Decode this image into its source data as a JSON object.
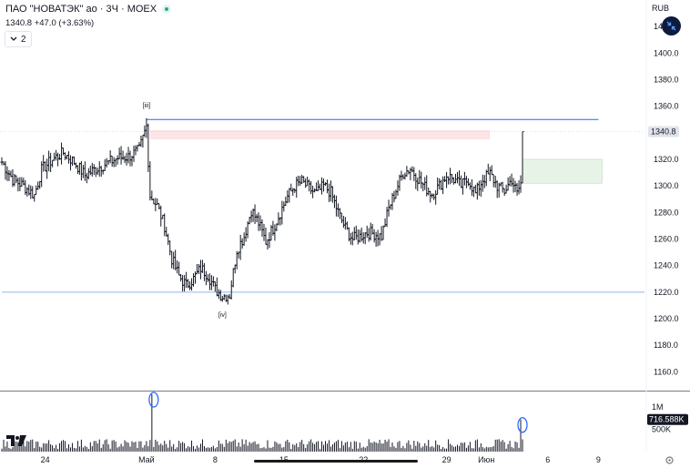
{
  "header": {
    "title": "ПАО \"НОВАТЭК\" ао · 3Ч · MOEX",
    "price": "1340.8",
    "change": "+47.0 (+3.63%)",
    "indicator_count": "2",
    "currency": "RUB"
  },
  "icons": {
    "status": "status-dot-icon",
    "collapse": "chevron-down-icon",
    "fab": "arrows-collapse-icon",
    "logo": "tradingview-logo-icon",
    "settings": "gear-icon"
  },
  "colors": {
    "up": "#131722",
    "resistance_line": "#2962ff",
    "support_line": "#90b4f5",
    "pink_zone": "#fce4e7",
    "green_zone": "#e8f3e8",
    "price_badge_bg": "#e0e3eb",
    "volume_badge_bg": "#131722"
  },
  "chart_data": {
    "type": "ohlc",
    "y_ticks": [
      "1420.0",
      "1400.0",
      "1380.0",
      "1360.0",
      "1340.0",
      "1320.0",
      "1300.0",
      "1280.0",
      "1260.0",
      "1240.0",
      "1220.0",
      "1200.0",
      "1180.0",
      "1160.0"
    ],
    "x_ticks": [
      "24",
      "Май",
      "8",
      "15",
      "22",
      "29",
      "Июн",
      "6",
      "9"
    ],
    "ylim": [
      1152,
      1440
    ],
    "x_bar_range": [
      0,
      290
    ],
    "annotations": [
      {
        "text": "[iii]",
        "bar": 80,
        "price": 1362
      },
      {
        "text": "[iv]",
        "bar": 122,
        "price": 1204
      }
    ],
    "horizontal_lines": [
      {
        "price": 1350,
        "from_bar": 80,
        "to_bar": 330,
        "style": "resistance"
      },
      {
        "price": 1220,
        "from_bar": 0,
        "to_bar": 356,
        "style": "support"
      }
    ],
    "zones": [
      {
        "from_bar": 82,
        "to_bar": 270,
        "low": 1335,
        "high": 1342,
        "style": "pink"
      },
      {
        "from_bar": 288,
        "to_bar": 332,
        "low": 1302,
        "high": 1320,
        "style": "green"
      }
    ],
    "last_price_label": "1340.8",
    "volume": {
      "ticks": [
        "1M",
        "500K"
      ],
      "last_label": "716.588K",
      "max": 1300000,
      "spikes": [
        {
          "bar": 83,
          "value": 1280000
        },
        {
          "bar": 287,
          "value": 716588
        }
      ]
    },
    "price_anchors": [
      [
        0,
        1318
      ],
      [
        6,
        1305
      ],
      [
        12,
        1300
      ],
      [
        18,
        1293
      ],
      [
        22,
        1312
      ],
      [
        28,
        1320
      ],
      [
        34,
        1325
      ],
      [
        40,
        1318
      ],
      [
        46,
        1308
      ],
      [
        52,
        1313
      ],
      [
        58,
        1317
      ],
      [
        64,
        1321
      ],
      [
        70,
        1322
      ],
      [
        76,
        1327
      ],
      [
        80,
        1345
      ],
      [
        82,
        1293
      ],
      [
        86,
        1285
      ],
      [
        90,
        1270
      ],
      [
        94,
        1245
      ],
      [
        98,
        1232
      ],
      [
        102,
        1225
      ],
      [
        106,
        1230
      ],
      [
        110,
        1238
      ],
      [
        114,
        1233
      ],
      [
        118,
        1222
      ],
      [
        122,
        1217
      ],
      [
        126,
        1218
      ],
      [
        130,
        1252
      ],
      [
        134,
        1262
      ],
      [
        138,
        1282
      ],
      [
        142,
        1272
      ],
      [
        146,
        1258
      ],
      [
        150,
        1268
      ],
      [
        154,
        1280
      ],
      [
        158,
        1292
      ],
      [
        162,
        1300
      ],
      [
        166,
        1303
      ],
      [
        170,
        1298
      ],
      [
        174,
        1294
      ],
      [
        178,
        1300
      ],
      [
        182,
        1295
      ],
      [
        186,
        1280
      ],
      [
        190,
        1268
      ],
      [
        194,
        1260
      ],
      [
        198,
        1262
      ],
      [
        202,
        1265
      ],
      [
        206,
        1264
      ],
      [
        210,
        1262
      ],
      [
        214,
        1283
      ],
      [
        218,
        1297
      ],
      [
        222,
        1310
      ],
      [
        226,
        1313
      ],
      [
        230,
        1306
      ],
      [
        234,
        1299
      ],
      [
        238,
        1294
      ],
      [
        242,
        1300
      ],
      [
        246,
        1308
      ],
      [
        250,
        1305
      ],
      [
        254,
        1300
      ],
      [
        258,
        1305
      ],
      [
        262,
        1294
      ],
      [
        266,
        1305
      ],
      [
        270,
        1309
      ],
      [
        274,
        1300
      ],
      [
        278,
        1296
      ],
      [
        282,
        1305
      ],
      [
        285,
        1294
      ],
      [
        287,
        1302
      ],
      [
        288,
        1340.8
      ]
    ]
  }
}
